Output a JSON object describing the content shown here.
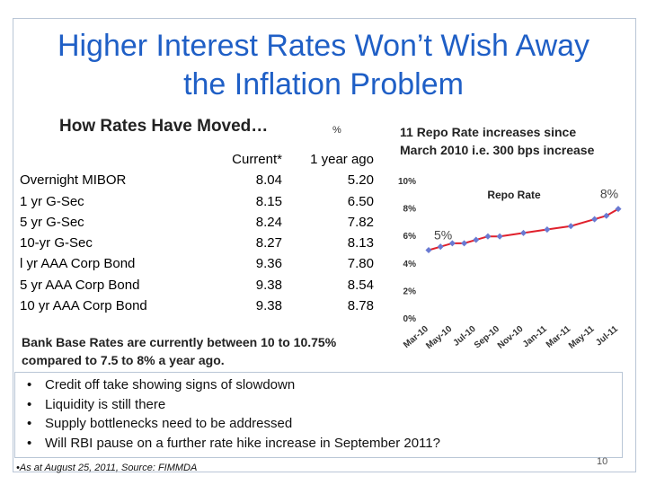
{
  "slide": {
    "title_line1": "Higher Interest Rates Won’t Wish Away",
    "title_line2": "the Inflation Problem",
    "subtitle": "How Rates Have Moved…",
    "unit_symbol": "%",
    "table": {
      "headers": [
        "",
        "Current*",
        "1 year  ago"
      ],
      "rows": [
        {
          "name": "Overnight MIBOR",
          "current": "8.04",
          "prev": "5.20"
        },
        {
          "name": "1 yr G-Sec",
          "current": "8.15",
          "prev": "6.50"
        },
        {
          "name": "5 yr G-Sec",
          "current": "8.24",
          "prev": "7.82"
        },
        {
          "name": "10-yr G-Sec",
          "current": "8.27",
          "prev": "8.13"
        },
        {
          "name": "l yr AAA Corp Bond",
          "current": "9.36",
          "prev": "7.80"
        },
        {
          "name": "5 yr AAA Corp Bond",
          "current": "9.38",
          "prev": "8.54"
        },
        {
          "name": "10 yr AAA Corp Bond",
          "current": "9.38",
          "prev": "8.78"
        }
      ]
    },
    "callout_line1": "11 Repo Rate increases since",
    "callout_line2": "March 2010 i.e. 300 bps increase",
    "bank_rates_line1": "Bank Base Rates are currently between 10 to 10.75%",
    "bank_rates_line2": "compared to 7.5 to 8% a year ago.",
    "bullets": [
      "Credit off take showing signs of slowdown",
      "Liquidity is still there",
      "Supply bottlenecks need to be addressed",
      "Will RBI pause on a further rate hike increase in September 2011?"
    ],
    "footnote": "•As at August 25, 2011, Source: FIMMDA",
    "page_number": "10"
  },
  "chart_data": {
    "type": "line",
    "title": "Repo Rate",
    "x_tick_labels": [
      "Mar-10",
      "May-10",
      "Jul-10",
      "Sep-10",
      "Nov-10",
      "Jan-11",
      "Mar-11",
      "May-11",
      "Jul-11"
    ],
    "y_tick_labels": [
      "0%",
      "2%",
      "4%",
      "6%",
      "8%",
      "10%"
    ],
    "ylim": [
      0,
      10
    ],
    "x": [
      "Mar-10",
      "Apr-10",
      "May-10",
      "Jun-10",
      "Jul-10",
      "Aug-10",
      "Sep-10",
      "Nov-10",
      "Jan-11",
      "Mar-11",
      "May-11",
      "Jun-11",
      "Jul-11"
    ],
    "series": [
      {
        "values": [
          5.0,
          5.25,
          5.5,
          5.5,
          5.75,
          6.0,
          6.0,
          6.25,
          6.5,
          6.75,
          7.25,
          7.5,
          8.0
        ],
        "color": "#e0202c",
        "marker_color": "#6a7ad2"
      }
    ],
    "annotations": [
      {
        "text": "5%",
        "at": "Mar-10"
      },
      {
        "text": "8%",
        "at": "Jul-11"
      }
    ],
    "grid": false
  }
}
